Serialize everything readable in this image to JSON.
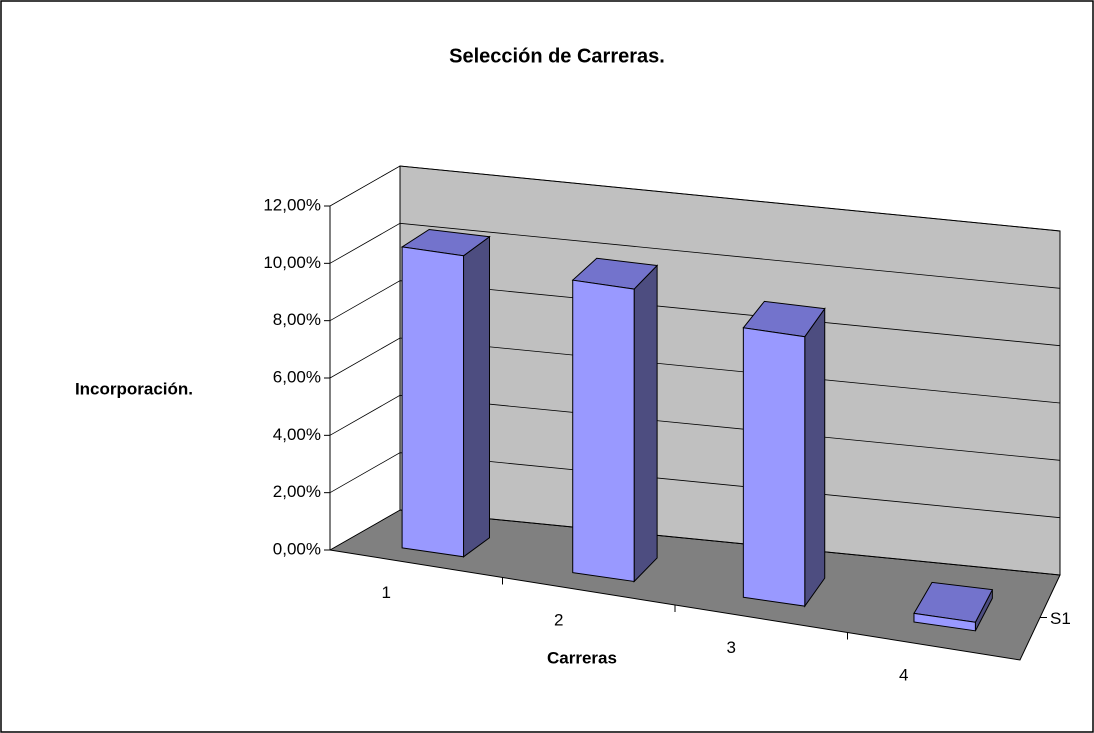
{
  "chart_data": {
    "type": "bar3d",
    "title": "Selección de Carreras.",
    "x_label": "Carreras",
    "y_label": "Incorporación.",
    "categories": [
      "1",
      "2",
      "3",
      "4"
    ],
    "series": [
      {
        "name": "S1",
        "color": "#9999ff",
        "values": [
          10.5,
          10.2,
          9.4,
          0.3
        ]
      }
    ],
    "ylim": [
      0,
      12
    ],
    "yticks": [
      {
        "value": 0,
        "label": "0,00%"
      },
      {
        "value": 2,
        "label": "2,00%"
      },
      {
        "value": 4,
        "label": "4,00%"
      },
      {
        "value": 6,
        "label": "6,00%"
      },
      {
        "value": 8,
        "label": "8,00%"
      },
      {
        "value": 10,
        "label": "10,00%"
      },
      {
        "value": 12,
        "label": "12,00%"
      }
    ],
    "grid": true
  }
}
